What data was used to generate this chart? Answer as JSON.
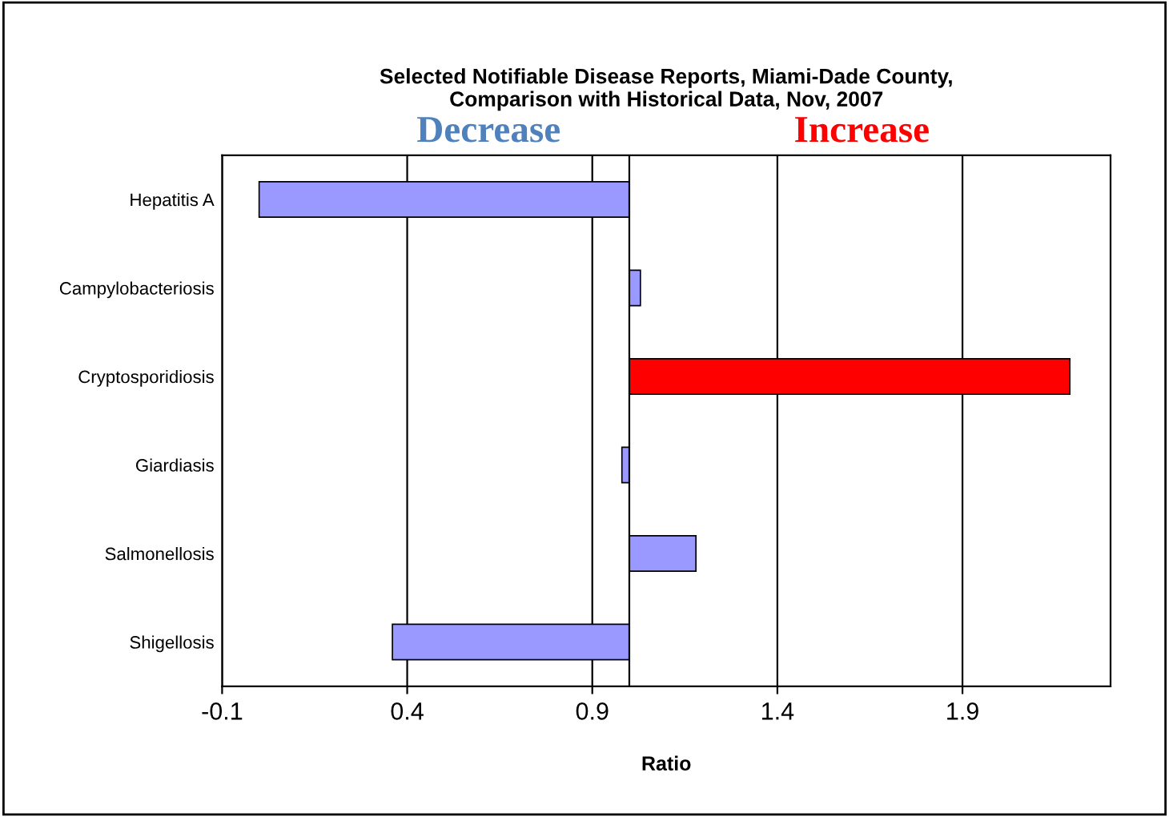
{
  "chart_data": {
    "type": "bar",
    "orientation": "horizontal",
    "title": "Selected Notifiable Disease Reports, Miami-Dade County,\nComparison with Historical Data, Nov, 2007",
    "xlabel": "Ratio",
    "categories": [
      "Hepatitis A",
      "Campylobacteriosis",
      "Cryptosporidiosis",
      "Giardiasis",
      "Salmonellosis",
      "Shigellosis"
    ],
    "base": [
      1,
      1,
      1,
      1,
      1,
      1
    ],
    "values": [
      -1.0,
      0.03,
      1.19,
      -0.02,
      0.18,
      -0.64
    ],
    "colors": [
      "#9999ff",
      "#9999ff",
      "#ff0000",
      "#9999ff",
      "#9999ff",
      "#9999ff"
    ],
    "xlim": [
      -0.1,
      2.3
    ],
    "xticks": [
      -0.1,
      0.4,
      0.9,
      1.4,
      1.9
    ],
    "grid": "x",
    "ref_lines": [
      {
        "axis": "x",
        "value": 1,
        "label": null,
        "color": "#000000"
      }
    ],
    "annotations": [
      "Decrease",
      "Increase"
    ]
  }
}
